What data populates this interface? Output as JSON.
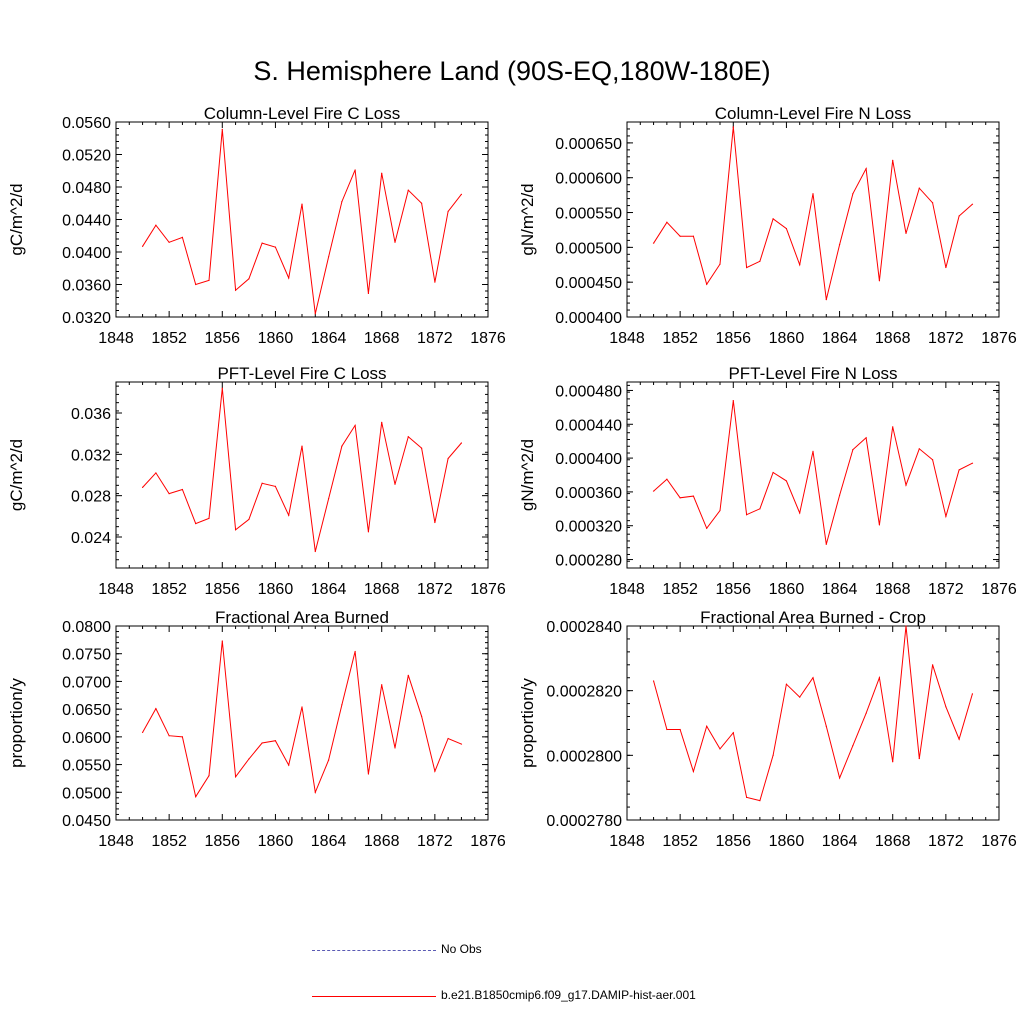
{
  "figure": {
    "title": "S. Hemisphere Land (90S-EQ,180W-180E)"
  },
  "legend": [
    {
      "label": "No Obs",
      "color": "#5a5ab4",
      "dash": true
    },
    {
      "label": "b.e21.B1850cmip6.f09_g17.DAMIP-hist-aer.001",
      "color": "#ff0000",
      "dash": false
    }
  ],
  "chart_data": [
    {
      "type": "line",
      "title": "Column-Level Fire C Loss",
      "ylabel": "gC/m^2/d",
      "xlim": [
        1848,
        1876
      ],
      "xticks": [
        "1848",
        "1852",
        "1856",
        "1860",
        "1864",
        "1868",
        "1872",
        "1876"
      ],
      "ylim": [
        0.032,
        0.056
      ],
      "yticks": [
        "0.0320",
        "0.0360",
        "0.0400",
        "0.0440",
        "0.0480",
        "0.0520",
        "0.0560"
      ],
      "x": [
        1850,
        1851,
        1852,
        1853,
        1854,
        1855,
        1856,
        1857,
        1858,
        1859,
        1860,
        1861,
        1862,
        1863,
        1864,
        1865,
        1866,
        1867,
        1868,
        1869,
        1870,
        1871,
        1872,
        1873,
        1874
      ],
      "series": [
        {
          "name": "b.e21.B1850cmip6.f09_g17.DAMIP-hist-aer.001",
          "color": "#ff0000",
          "values": [
            0.0407,
            0.0433,
            0.0412,
            0.0418,
            0.036,
            0.0365,
            0.0551,
            0.0353,
            0.0367,
            0.0411,
            0.0406,
            0.0368,
            0.0459,
            0.0324,
            0.0394,
            0.0462,
            0.0501,
            0.0349,
            0.0497,
            0.0412,
            0.0476,
            0.046,
            0.0363,
            0.045,
            0.0471
          ]
        }
      ]
    },
    {
      "type": "line",
      "title": "Column-Level Fire N Loss",
      "ylabel": "gN/m^2/d",
      "xlim": [
        1848,
        1876
      ],
      "xticks": [
        "1848",
        "1852",
        "1856",
        "1860",
        "1864",
        "1868",
        "1872",
        "1876"
      ],
      "ylim": [
        0.0004,
        0.00068
      ],
      "yticks": [
        "0.000400",
        "0.000450",
        "0.000500",
        "0.000550",
        "0.000600",
        "0.000650"
      ],
      "x": [
        1850,
        1851,
        1852,
        1853,
        1854,
        1855,
        1856,
        1857,
        1858,
        1859,
        1860,
        1861,
        1862,
        1863,
        1864,
        1865,
        1866,
        1867,
        1868,
        1869,
        1870,
        1871,
        1872,
        1873,
        1874
      ],
      "series": [
        {
          "name": "b.e21.B1850cmip6.f09_g17.DAMIP-hist-aer.001",
          "color": "#ff0000",
          "values": [
            0.000506,
            0.000536,
            0.000516,
            0.000516,
            0.000447,
            0.000476,
            0.000673,
            0.000471,
            0.00048,
            0.000541,
            0.000527,
            0.000475,
            0.000577,
            0.000425,
            0.000504,
            0.000577,
            0.000613,
            0.000452,
            0.000625,
            0.00052,
            0.000585,
            0.000564,
            0.000471,
            0.000545,
            0.000562
          ]
        }
      ]
    },
    {
      "type": "line",
      "title": "PFT-Level Fire C Loss",
      "ylabel": "gC/m^2/d",
      "xlim": [
        1848,
        1876
      ],
      "xticks": [
        "1848",
        "1852",
        "1856",
        "1860",
        "1864",
        "1868",
        "1872",
        "1876"
      ],
      "ylim": [
        0.021,
        0.039
      ],
      "yticks": [
        "0.024",
        "0.028",
        "0.032",
        "0.036"
      ],
      "x": [
        1850,
        1851,
        1852,
        1853,
        1854,
        1855,
        1856,
        1857,
        1858,
        1859,
        1860,
        1861,
        1862,
        1863,
        1864,
        1865,
        1866,
        1867,
        1868,
        1869,
        1870,
        1871,
        1872,
        1873,
        1874
      ],
      "series": [
        {
          "name": "b.e21.B1850cmip6.f09_g17.DAMIP-hist-aer.001",
          "color": "#ff0000",
          "values": [
            0.0288,
            0.0302,
            0.0282,
            0.0286,
            0.0253,
            0.0258,
            0.0384,
            0.0247,
            0.0257,
            0.0292,
            0.0289,
            0.0261,
            0.0328,
            0.0226,
            0.0277,
            0.0328,
            0.0348,
            0.0245,
            0.0351,
            0.0291,
            0.0337,
            0.0326,
            0.0254,
            0.0316,
            0.0331
          ]
        }
      ]
    },
    {
      "type": "line",
      "title": "PFT-Level Fire N Loss",
      "ylabel": "gN/m^2/d",
      "xlim": [
        1848,
        1876
      ],
      "xticks": [
        "1848",
        "1852",
        "1856",
        "1860",
        "1864",
        "1868",
        "1872",
        "1876"
      ],
      "ylim": [
        0.00027,
        0.00049
      ],
      "yticks": [
        "0.000280",
        "0.000320",
        "0.000360",
        "0.000400",
        "0.000440",
        "0.000480"
      ],
      "x": [
        1850,
        1851,
        1852,
        1853,
        1854,
        1855,
        1856,
        1857,
        1858,
        1859,
        1860,
        1861,
        1862,
        1863,
        1864,
        1865,
        1866,
        1867,
        1868,
        1869,
        1870,
        1871,
        1872,
        1873,
        1874
      ],
      "series": [
        {
          "name": "b.e21.B1850cmip6.f09_g17.DAMIP-hist-aer.001",
          "color": "#ff0000",
          "values": [
            0.000361,
            0.000375,
            0.000353,
            0.000355,
            0.000317,
            0.000338,
            0.000468,
            0.000333,
            0.00034,
            0.000383,
            0.000373,
            0.000335,
            0.000408,
            0.000298,
            0.000356,
            0.00041,
            0.000424,
            0.000321,
            0.000437,
            0.000368,
            0.000411,
            0.000398,
            0.000331,
            0.000386,
            0.000394
          ]
        }
      ]
    },
    {
      "type": "line",
      "title": "Fractional Area Burned",
      "ylabel": "proportion/y",
      "xlim": [
        1848,
        1876
      ],
      "xticks": [
        "1848",
        "1852",
        "1856",
        "1860",
        "1864",
        "1868",
        "1872",
        "1876"
      ],
      "ylim": [
        0.045,
        0.08
      ],
      "yticks": [
        "0.0450",
        "0.0500",
        "0.0550",
        "0.0600",
        "0.0650",
        "0.0700",
        "0.0750",
        "0.0800"
      ],
      "x": [
        1850,
        1851,
        1852,
        1853,
        1854,
        1855,
        1856,
        1857,
        1858,
        1859,
        1860,
        1861,
        1862,
        1863,
        1864,
        1865,
        1866,
        1867,
        1868,
        1869,
        1870,
        1871,
        1872,
        1873,
        1874
      ],
      "series": [
        {
          "name": "b.e21.B1850cmip6.f09_g17.DAMIP-hist-aer.001",
          "color": "#ff0000",
          "values": [
            0.0608,
            0.0651,
            0.0602,
            0.06,
            0.0492,
            0.053,
            0.0773,
            0.0528,
            0.056,
            0.0589,
            0.0593,
            0.0549,
            0.0654,
            0.05,
            0.0558,
            0.0658,
            0.0754,
            0.0533,
            0.0694,
            0.058,
            0.0711,
            0.0637,
            0.0538,
            0.0597,
            0.0587
          ]
        }
      ]
    },
    {
      "type": "line",
      "title": "Fractional Area Burned - Crop",
      "ylabel": "proportion/y",
      "xlim": [
        1848,
        1876
      ],
      "xticks": [
        "1848",
        "1852",
        "1856",
        "1860",
        "1864",
        "1868",
        "1872",
        "1876"
      ],
      "ylim": [
        0.000278,
        0.000284
      ],
      "yticks": [
        "0.0002780",
        "0.0002800",
        "0.0002820",
        "0.0002840"
      ],
      "x": [
        1850,
        1851,
        1852,
        1853,
        1854,
        1855,
        1856,
        1857,
        1858,
        1859,
        1860,
        1861,
        1862,
        1863,
        1864,
        1865,
        1866,
        1867,
        1868,
        1869,
        1870,
        1871,
        1872,
        1873,
        1874
      ],
      "series": [
        {
          "name": "b.e21.B1850cmip6.f09_g17.DAMIP-hist-aer.001",
          "color": "#ff0000",
          "values": [
            0.0002823,
            0.0002808,
            0.0002808,
            0.0002795,
            0.0002809,
            0.0002802,
            0.0002807,
            0.0002787,
            0.0002786,
            0.00028,
            0.0002822,
            0.0002818,
            0.0002824,
            0.0002809,
            0.0002793,
            0.0002803,
            0.0002813,
            0.0002824,
            0.0002798,
            0.000284,
            0.0002799,
            0.0002828,
            0.0002815,
            0.0002805,
            0.0002819
          ]
        }
      ]
    }
  ]
}
